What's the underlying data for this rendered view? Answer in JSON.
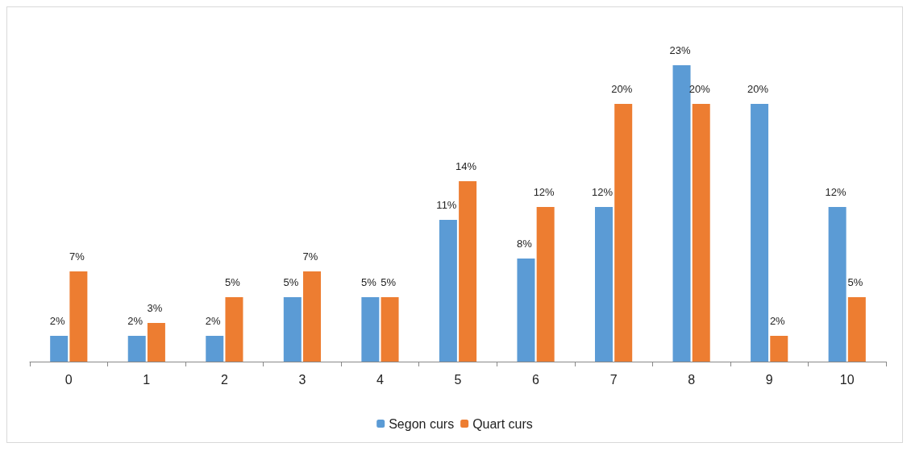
{
  "chart_data": {
    "type": "bar",
    "categories": [
      "0",
      "1",
      "2",
      "3",
      "4",
      "5",
      "6",
      "7",
      "8",
      "9",
      "10"
    ],
    "series": [
      {
        "name": "Segon curs",
        "color": "#5b9bd5",
        "values": [
          2,
          2,
          2,
          5,
          5,
          11,
          8,
          12,
          23,
          20,
          12
        ],
        "value_labels": [
          "2%",
          "2%",
          "2%",
          "5%",
          "5%",
          "11%",
          "8%",
          "12%",
          "23%",
          "20%",
          "12%"
        ]
      },
      {
        "name": "Quart curs",
        "color": "#ed7d31",
        "values": [
          7,
          3,
          5,
          7,
          5,
          14,
          12,
          20,
          20,
          2,
          5
        ],
        "value_labels": [
          "7%",
          "3%",
          "5%",
          "7%",
          "5%",
          "14%",
          "12%",
          "20%",
          "20%",
          "2%",
          "5%"
        ]
      }
    ],
    "legend": "bottom",
    "grid": false
  }
}
